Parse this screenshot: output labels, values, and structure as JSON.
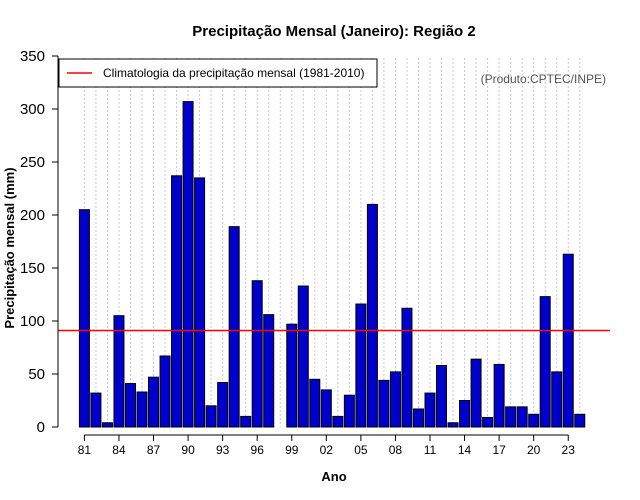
{
  "chart_data": {
    "type": "bar",
    "title": "Precipitação Mensal (Janeiro): Região 2",
    "xlabel": "Ano",
    "ylabel": "Precipitação mensal (mm)",
    "credit": "(Produto:CPTEC/INPE)",
    "ylim": [
      0,
      350
    ],
    "yticks": [
      0,
      50,
      100,
      150,
      200,
      250,
      300,
      350
    ],
    "x_tick_labels": [
      "81",
      "84",
      "87",
      "90",
      "93",
      "96",
      "99",
      "02",
      "05",
      "08",
      "11",
      "14",
      "17",
      "20",
      "23"
    ],
    "years": [
      1981,
      1982,
      1983,
      1984,
      1985,
      1986,
      1987,
      1988,
      1989,
      1990,
      1991,
      1992,
      1993,
      1994,
      1995,
      1996,
      1997,
      1998,
      1999,
      2000,
      2001,
      2002,
      2003,
      2004,
      2005,
      2006,
      2007,
      2008,
      2009,
      2010,
      2011,
      2012,
      2013,
      2014,
      2015,
      2016,
      2017,
      2018,
      2019,
      2020,
      2021,
      2022,
      2023,
      2024
    ],
    "values": [
      205,
      32,
      4,
      105,
      41,
      33,
      47,
      67,
      237,
      307,
      235,
      20,
      42,
      189,
      10,
      138,
      106,
      0,
      97,
      133,
      45,
      35,
      10,
      30,
      116,
      210,
      44,
      52,
      112,
      17,
      32,
      58,
      4,
      25,
      64,
      9,
      59,
      19,
      19,
      12,
      123,
      52,
      163,
      12
    ],
    "bar_color": "#0000cd",
    "reference_line": {
      "label": "Climatologia da precipitação mensal (1981-2010)",
      "value": 91,
      "color": "#ff0000"
    },
    "legend_position": "top-left",
    "grid": "vertical dotted"
  }
}
